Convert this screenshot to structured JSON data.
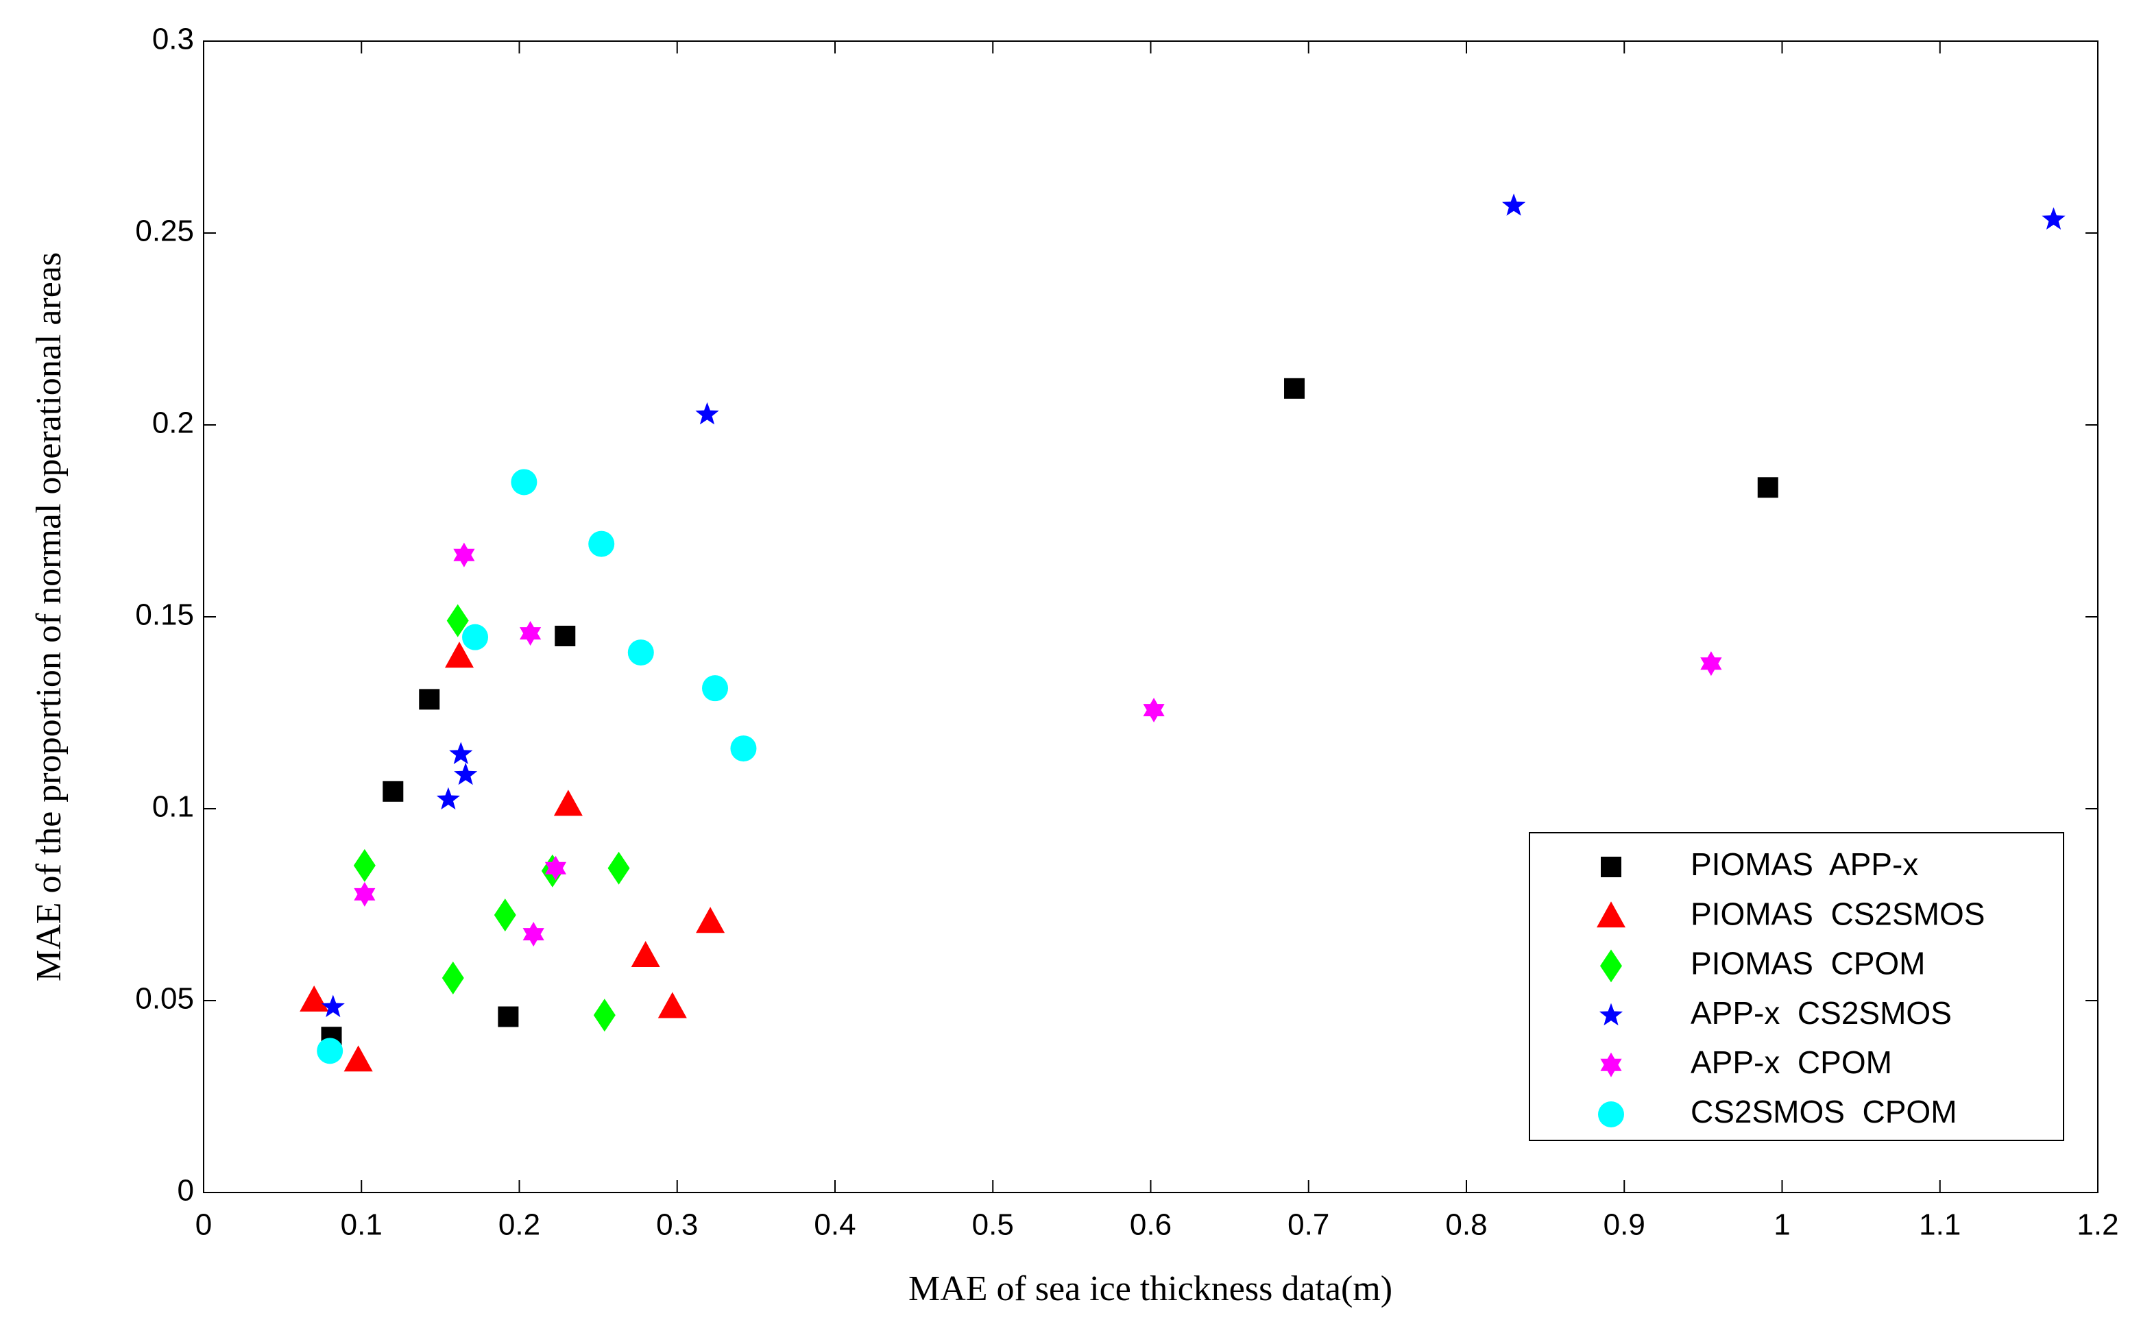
{
  "chart_data": {
    "type": "scatter",
    "xlabel": "MAE of sea ice thickness data(m)",
    "ylabel": "MAE of the proportion of normal operational areas",
    "xlim": [
      0,
      1.2
    ],
    "ylim": [
      0,
      0.3
    ],
    "xticks": [
      0,
      0.1,
      0.2,
      0.3,
      0.4,
      0.5,
      0.6,
      0.7,
      0.8,
      0.9,
      1,
      1.1,
      1.2
    ],
    "yticks": [
      0,
      0.05,
      0.1,
      0.15,
      0.2,
      0.25,
      0.3
    ],
    "grid": false,
    "legend": "lower right",
    "series": [
      {
        "name": "PIOMAS  APP-x",
        "color": "#000000",
        "marker": "square",
        "x": [
          0.081,
          0.12,
          0.143,
          0.193,
          0.229,
          0.691,
          0.991
        ],
        "values": [
          0.0405,
          0.1045,
          0.1285,
          0.0458,
          0.145,
          0.2095,
          0.1837
        ]
      },
      {
        "name": "PIOMAS  CS2SMOS",
        "color": "#ff0000",
        "marker": "triangle",
        "x": [
          0.07,
          0.098,
          0.162,
          0.231,
          0.28,
          0.297,
          0.321
        ],
        "values": [
          0.05,
          0.0344,
          0.1396,
          0.101,
          0.0616,
          0.0483,
          0.0705
        ]
      },
      {
        "name": "PIOMAS  CPOM",
        "color": "#00ff00",
        "marker": "diamond",
        "x": [
          0.102,
          0.161,
          0.158,
          0.191,
          0.221,
          0.263,
          0.254
        ],
        "values": [
          0.0852,
          0.149,
          0.0559,
          0.0723,
          0.0838,
          0.0845,
          0.0462
        ]
      },
      {
        "name": "APP-x  CS2SMOS",
        "color": "#0000ff",
        "marker": "star",
        "x": [
          0.082,
          0.155,
          0.163,
          0.166,
          0.319,
          0.83,
          1.172
        ],
        "values": [
          0.0483,
          0.1024,
          0.1142,
          0.1088,
          0.2027,
          0.2571,
          0.2535
        ]
      },
      {
        "name": "APP-x  CPOM",
        "color": "#ff00ff",
        "marker": "hexagram",
        "x": [
          0.102,
          0.165,
          0.207,
          0.209,
          0.223,
          0.602,
          0.955
        ],
        "values": [
          0.0777,
          0.1661,
          0.1457,
          0.0673,
          0.0845,
          0.1257,
          0.1378
        ]
      },
      {
        "name": "CS2SMOS  CPOM",
        "color": "#00ffff",
        "marker": "circle",
        "x": [
          0.08,
          0.172,
          0.203,
          0.252,
          0.277,
          0.324,
          0.342
        ],
        "values": [
          0.0369,
          0.1447,
          0.1851,
          0.169,
          0.1407,
          0.1314,
          0.1157
        ]
      }
    ]
  }
}
